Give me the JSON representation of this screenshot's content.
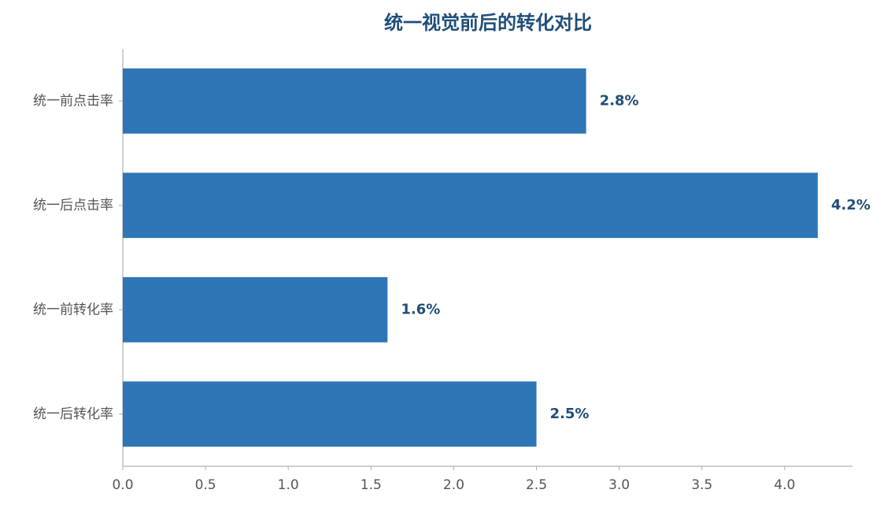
{
  "chart_data": {
    "type": "barh",
    "title": "统一视觉前后的转化对比",
    "categories": [
      "统一前点击率",
      "统一后点击率",
      "统一前转化率",
      "统一后转化率"
    ],
    "values": [
      2.8,
      4.2,
      1.6,
      2.5
    ],
    "value_labels": [
      "2.8%",
      "4.2%",
      "1.6%",
      "2.5%"
    ],
    "color": "#2e75b6",
    "xlim": [
      0,
      4.41
    ],
    "xticks": [
      {
        "value": 0,
        "label": "0.0"
      },
      0.5,
      {
        "value": 1,
        "label": "1.0"
      },
      1.5,
      {
        "value": 2,
        "label": "2.0"
      },
      2.5,
      {
        "value": 3,
        "label": "3.0"
      },
      3.5,
      {
        "value": 4,
        "label": "4.0"
      }
    ],
    "grid": false
  }
}
